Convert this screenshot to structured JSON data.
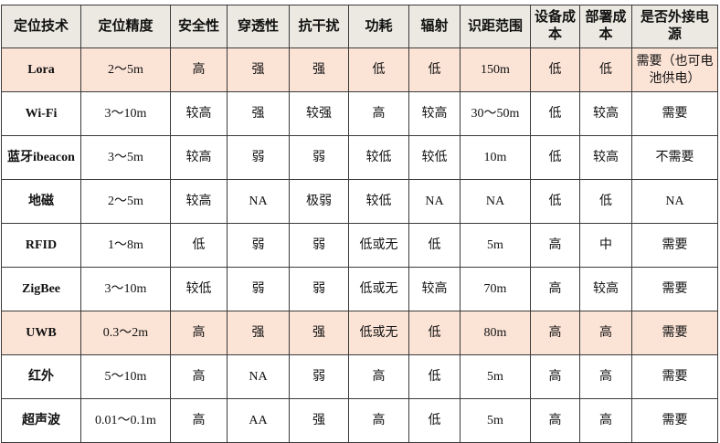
{
  "headers": [
    "定位技术",
    "定位精度",
    "安全性",
    "穿透性",
    "抗干扰",
    "功耗",
    "辐射",
    "识距范围",
    "设备成本",
    "部署成本",
    "是否外接电源"
  ],
  "rows": [
    {
      "highlight": true,
      "cells": [
        "Lora",
        "2～5m",
        "高",
        "强",
        "强",
        "低",
        "低",
        "150m",
        "低",
        "低",
        "需要（也可电池供电）"
      ]
    },
    {
      "highlight": false,
      "cells": [
        "Wi-Fi",
        "3～10m",
        "较高",
        "强",
        "较强",
        "高",
        "较高",
        "30～50m",
        "低",
        "较高",
        "需要"
      ]
    },
    {
      "highlight": false,
      "cells": [
        "蓝牙ibeacon",
        "3～5m",
        "较高",
        "弱",
        "弱",
        "较低",
        "较低",
        "10m",
        "低",
        "较高",
        "不需要"
      ]
    },
    {
      "highlight": false,
      "cells": [
        "地磁",
        "2～5m",
        "较高",
        "NA",
        "极弱",
        "较低",
        "NA",
        "NA",
        "低",
        "低",
        "NA"
      ]
    },
    {
      "highlight": false,
      "cells": [
        "RFID",
        "1～8m",
        "低",
        "弱",
        "弱",
        "低或无",
        "低",
        "5m",
        "高",
        "中",
        "需要"
      ]
    },
    {
      "highlight": false,
      "cells": [
        "ZigBee",
        "3～10m",
        "较低",
        "弱",
        "弱",
        "低或无",
        "较高",
        "70m",
        "高",
        "较高",
        "需要"
      ]
    },
    {
      "highlight": true,
      "cells": [
        "UWB",
        "0.3～2m",
        "高",
        "强",
        "强",
        "低或无",
        "低",
        "80m",
        "高",
        "高",
        "需要"
      ]
    },
    {
      "highlight": false,
      "cells": [
        "红外",
        "5～10m",
        "高",
        "NA",
        "弱",
        "高",
        "低",
        "5m",
        "高",
        "高",
        "需要"
      ]
    },
    {
      "highlight": false,
      "cells": [
        "超声波",
        "0.01～0.1m",
        "高",
        "AA",
        "强",
        "高",
        "低",
        "5m",
        "高",
        "高",
        "需要"
      ]
    }
  ],
  "colors": {
    "header_bg": "#ebe9e1",
    "highlight_bg": "#fbe3d6"
  }
}
